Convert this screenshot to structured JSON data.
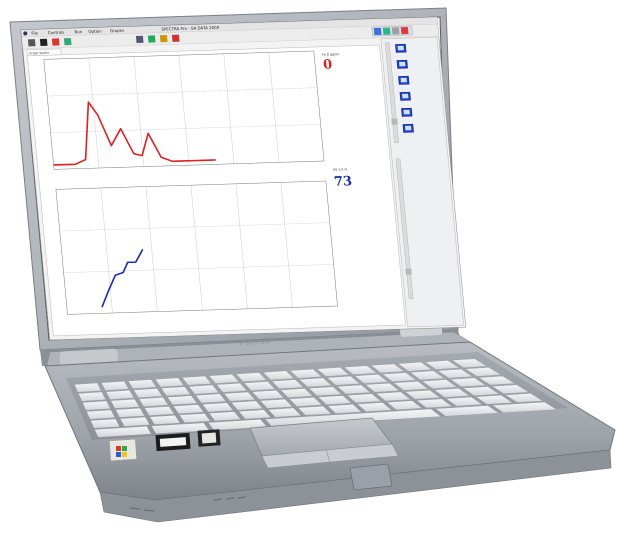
{
  "menu": {
    "items": [
      "File",
      "Controls",
      "Run",
      "Option",
      "Graphs"
    ]
  },
  "header": {
    "title": "SPECTRA Pro - SA DATA 2000"
  },
  "panel": {
    "tab_label": "Graph Spektr"
  },
  "sensor_top": {
    "label": "Fe 0 (ppm)",
    "value": "0",
    "color": "#e02020"
  },
  "sensor_bottom": {
    "label": "UV 1.5 nl",
    "value": "73",
    "color": "#1a2fb5"
  },
  "chart_data": [
    {
      "type": "line",
      "title": "",
      "xlabel": "",
      "ylabel": "",
      "xlim": [
        0,
        100
      ],
      "ylim": [
        0,
        100
      ],
      "grid": true,
      "series": [
        {
          "color": "#e02020",
          "x": [
            0,
            8,
            12,
            15,
            18,
            22,
            26,
            30,
            33,
            36,
            40,
            44,
            48,
            52,
            56,
            60
          ],
          "y": [
            4,
            4,
            8,
            60,
            48,
            20,
            35,
            12,
            10,
            30,
            8,
            4,
            4,
            4,
            4,
            4
          ]
        }
      ]
    },
    {
      "type": "line",
      "title": "",
      "xlabel": "",
      "ylabel": "",
      "xlim": [
        0,
        100
      ],
      "ylim": [
        0,
        100
      ],
      "grid": true,
      "series": [
        {
          "color": "#1a2fb5",
          "x": [
            13,
            16,
            19,
            22,
            24,
            27,
            30
          ],
          "y": [
            5,
            18,
            30,
            32,
            40,
            40,
            50
          ]
        }
      ]
    }
  ],
  "icons": {
    "toolbar": [
      "arrow-icon",
      "record-icon",
      "stop-icon",
      "graph-icon",
      "print-icon",
      "save-icon",
      "ruler-icon",
      "measure-icon"
    ],
    "side": [
      "monitor-icon-1",
      "monitor-icon-2",
      "monitor-icon-3",
      "monitor-icon-4",
      "monitor-icon-5",
      "monitor-icon-6"
    ]
  },
  "logo": {
    "brand": "FUJITSU"
  }
}
